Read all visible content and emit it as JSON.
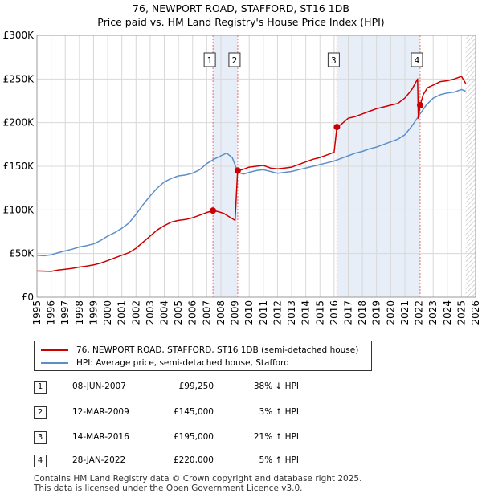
{
  "header": {
    "title": "76, NEWPORT ROAD, STAFFORD, ST16 1DB",
    "subtitle": "Price paid vs. HM Land Registry's House Price Index (HPI)"
  },
  "chart_data": {
    "type": "line",
    "title": "76, NEWPORT ROAD, STAFFORD, ST16 1DB",
    "subtitle": "Price paid vs. HM Land Registry's House Price Index (HPI)",
    "xlabel": "",
    "ylabel": "",
    "xlim": [
      1995,
      2026
    ],
    "ylim": [
      0,
      300000
    ],
    "x_ticks": [
      1995,
      1996,
      1997,
      1998,
      1999,
      2000,
      2001,
      2002,
      2003,
      2004,
      2005,
      2006,
      2007,
      2008,
      2009,
      2010,
      2011,
      2012,
      2013,
      2014,
      2015,
      2016,
      2017,
      2018,
      2019,
      2020,
      2021,
      2022,
      2023,
      2024,
      2025,
      2026
    ],
    "y_ticks": [
      0,
      50000,
      100000,
      150000,
      200000,
      250000,
      300000
    ],
    "y_tick_labels": [
      "£0",
      "£50K",
      "£100K",
      "£150K",
      "£200K",
      "£250K",
      "£300K"
    ],
    "grid": true,
    "colors": {
      "property": "#cc0000",
      "hpi": "#5b8fc9",
      "band": "#e8eef8",
      "grid": "#d8d8d8",
      "marker_line": "#e07070"
    },
    "series": [
      {
        "name": "76, NEWPORT ROAD, STAFFORD, ST16 1DB (semi-detached house)",
        "x": [
          1995.0,
          1996.0,
          1996.5,
          1997.0,
          1997.5,
          1998.0,
          1998.5,
          1999.0,
          1999.5,
          2000.0,
          2000.5,
          2001.0,
          2001.5,
          2002.0,
          2002.5,
          2003.0,
          2003.5,
          2004.0,
          2004.5,
          2005.0,
          2005.5,
          2006.0,
          2006.5,
          2007.0,
          2007.44,
          2007.8,
          2008.2,
          2008.6,
          2009.0,
          2009.18,
          2009.5,
          2010.0,
          2010.5,
          2011.0,
          2011.5,
          2012.0,
          2012.5,
          2013.0,
          2013.5,
          2014.0,
          2014.5,
          2015.0,
          2015.5,
          2016.0,
          2016.2,
          2016.5,
          2017.0,
          2017.5,
          2018.0,
          2018.5,
          2019.0,
          2019.5,
          2020.0,
          2020.5,
          2021.0,
          2021.5,
          2021.9,
          2021.95,
          2022.08,
          2022.3,
          2022.6,
          2023.0,
          2023.5,
          2024.0,
          2024.5,
          2025.0,
          2025.3
        ],
        "values": [
          30000,
          29500,
          31000,
          32000,
          33000,
          34500,
          35500,
          37000,
          39000,
          42000,
          45000,
          48000,
          51000,
          56000,
          63000,
          70000,
          77000,
          82000,
          86000,
          88000,
          89000,
          91000,
          94000,
          97000,
          99250,
          98000,
          96000,
          92000,
          88000,
          145000,
          146000,
          149000,
          150000,
          151000,
          148000,
          147000,
          148000,
          149000,
          152000,
          155000,
          158000,
          160000,
          163000,
          166000,
          195000,
          198000,
          205000,
          207000,
          210000,
          213000,
          216000,
          218000,
          220000,
          222000,
          228000,
          238000,
          250000,
          205000,
          220000,
          232000,
          240000,
          243000,
          247000,
          248000,
          250000,
          253000,
          245000
        ]
      },
      {
        "name": "HPI: Average price, semi-detached house, Stafford",
        "x": [
          1995.0,
          1995.5,
          1996.0,
          1996.5,
          1997.0,
          1997.5,
          1998.0,
          1998.5,
          1999.0,
          1999.5,
          2000.0,
          2000.5,
          2001.0,
          2001.5,
          2002.0,
          2002.5,
          2003.0,
          2003.5,
          2004.0,
          2004.5,
          2005.0,
          2005.5,
          2006.0,
          2006.5,
          2007.0,
          2007.5,
          2008.0,
          2008.4,
          2008.8,
          2009.2,
          2009.6,
          2010.0,
          2010.5,
          2011.0,
          2011.5,
          2012.0,
          2012.5,
          2013.0,
          2013.5,
          2014.0,
          2014.5,
          2015.0,
          2015.5,
          2016.0,
          2016.5,
          2017.0,
          2017.5,
          2018.0,
          2018.5,
          2019.0,
          2019.5,
          2020.0,
          2020.5,
          2021.0,
          2021.5,
          2022.0,
          2022.5,
          2023.0,
          2023.5,
          2024.0,
          2024.5,
          2025.0,
          2025.3
        ],
        "values": [
          48000,
          47500,
          48500,
          51000,
          53000,
          55000,
          57500,
          59000,
          61000,
          65000,
          70000,
          74000,
          79000,
          85000,
          95000,
          106000,
          116000,
          125000,
          132000,
          136000,
          139000,
          140000,
          142000,
          146000,
          153000,
          158000,
          162000,
          165000,
          160000,
          143000,
          141000,
          143000,
          145000,
          146000,
          144000,
          142000,
          143000,
          144000,
          146000,
          148000,
          150000,
          152000,
          154000,
          156000,
          159000,
          162000,
          165000,
          167000,
          170000,
          172000,
          175000,
          178000,
          181000,
          186000,
          196000,
          208000,
          220000,
          228000,
          232000,
          234000,
          235000,
          238000,
          236000
        ]
      }
    ],
    "transactions": [
      {
        "label": "1",
        "year": 2007.44,
        "price": 99250,
        "date": "08-JUN-2007",
        "price_text": "£99,250",
        "hpi_text": "38% ↓ HPI"
      },
      {
        "label": "2",
        "year": 2009.19,
        "price": 145000,
        "date": "12-MAR-2009",
        "price_text": "£145,000",
        "hpi_text": "3% ↑ HPI"
      },
      {
        "label": "3",
        "year": 2016.2,
        "price": 195000,
        "date": "14-MAR-2016",
        "price_text": "£195,000",
        "hpi_text": "21% ↑ HPI"
      },
      {
        "label": "4",
        "year": 2022.08,
        "price": 220000,
        "date": "28-JAN-2022",
        "price_text": "£220,000",
        "hpi_text": "5% ↑ HPI"
      }
    ],
    "shaded_bands": [
      [
        2007.44,
        2009.19
      ],
      [
        2016.2,
        2022.08
      ]
    ],
    "hatched_from": 2025.3
  },
  "legend": {
    "property_label": "76, NEWPORT ROAD, STAFFORD, ST16 1DB (semi-detached house)",
    "hpi_label": "HPI: Average price, semi-detached house, Stafford"
  },
  "footer": {
    "line1": "Contains HM Land Registry data © Crown copyright and database right 2025.",
    "line2": "This data is licensed under the Open Government Licence v3.0."
  }
}
